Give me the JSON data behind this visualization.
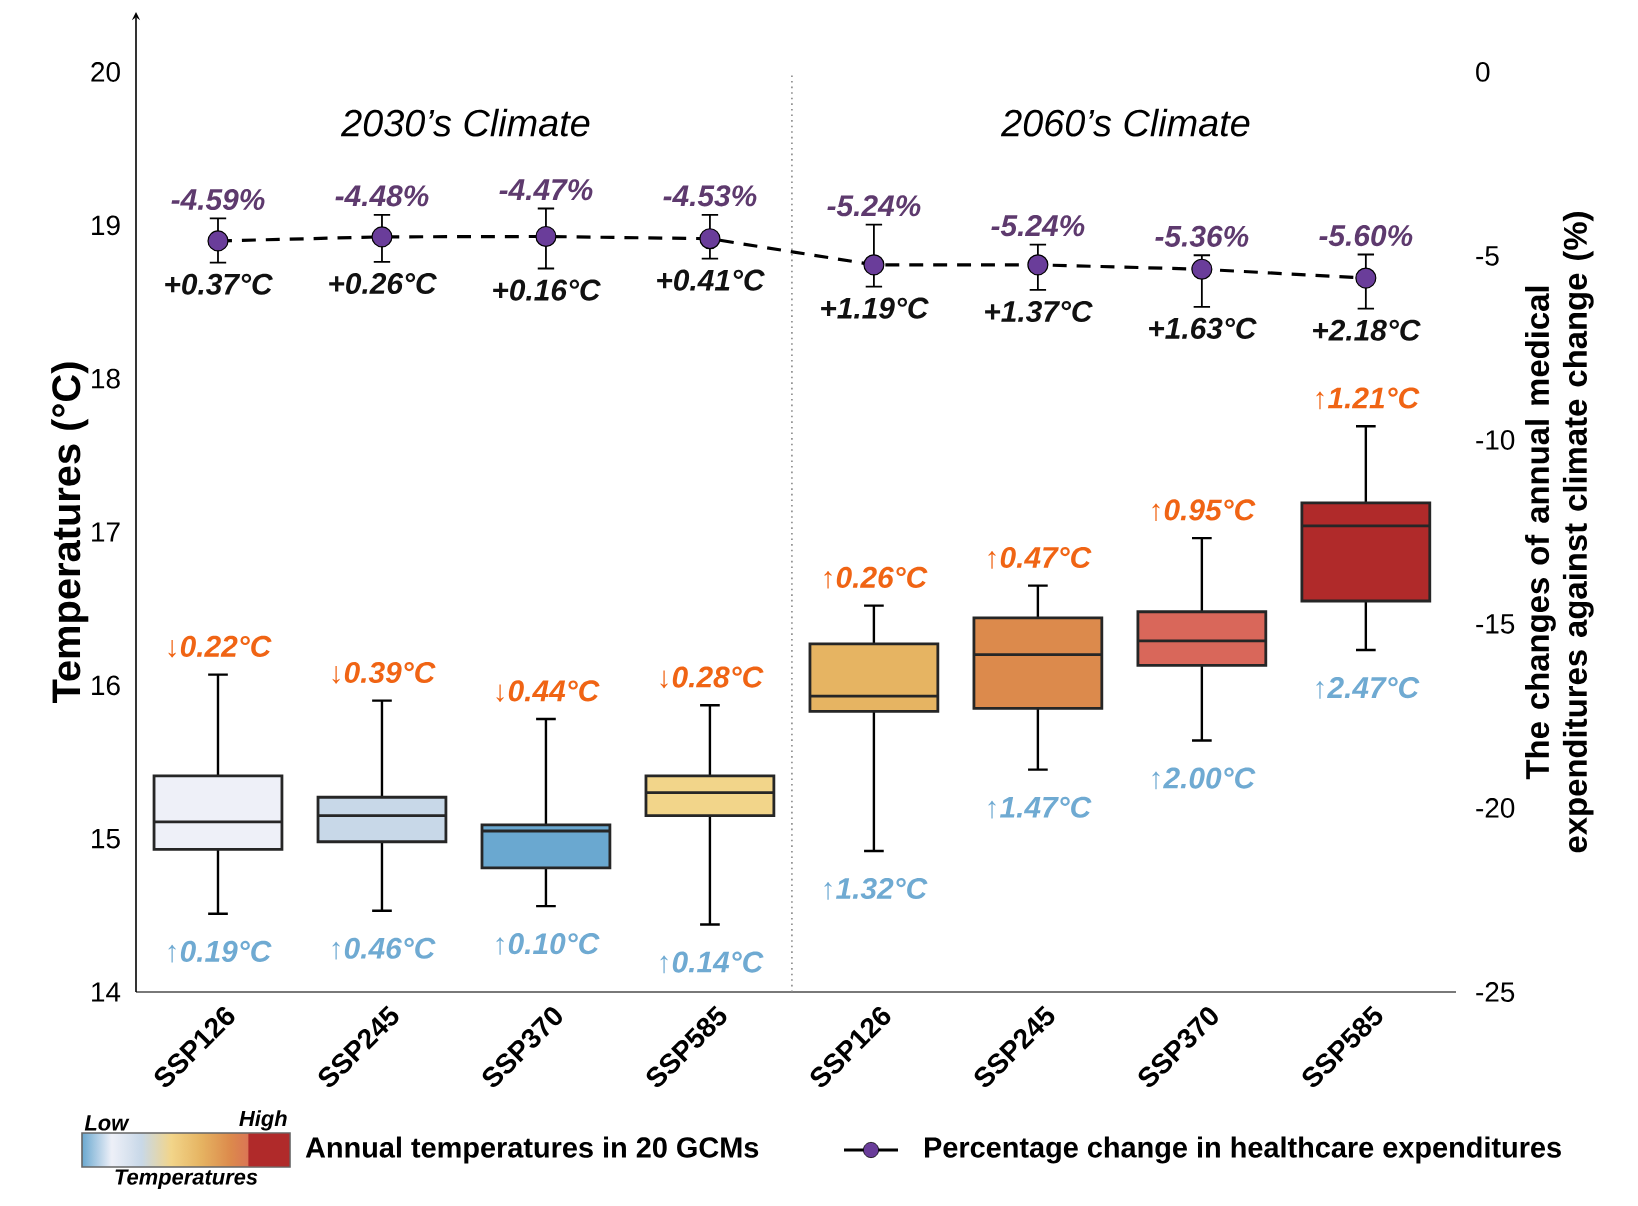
{
  "chart_data": {
    "type": "box",
    "categories": [
      "SSP126",
      "SSP245",
      "SSP370",
      "SSP585",
      "SSP126",
      "SSP245",
      "SSP370",
      "SSP585"
    ],
    "series": [
      {
        "name": "Annual temperatures in 20 GCMs",
        "colors": [
          "#eef0f8",
          "#c8d8e8",
          "#6aa8d0",
          "#f2d58a",
          "#e6b462",
          "#dc8a4c",
          "#d9675a",
          "#b02a2a"
        ],
        "boxes": [
          {
            "low": 14.51,
            "q1": 14.93,
            "median": 15.11,
            "q3": 15.41,
            "high": 16.07
          },
          {
            "low": 14.53,
            "q1": 14.98,
            "median": 15.15,
            "q3": 15.27,
            "high": 15.9
          },
          {
            "low": 14.56,
            "q1": 14.81,
            "median": 15.05,
            "q3": 15.09,
            "high": 15.78
          },
          {
            "low": 14.44,
            "q1": 15.15,
            "median": 15.3,
            "q3": 15.41,
            "high": 15.87
          },
          {
            "low": 14.92,
            "q1": 15.83,
            "median": 15.93,
            "q3": 16.27,
            "high": 16.52
          },
          {
            "low": 15.45,
            "q1": 15.85,
            "median": 16.2,
            "q3": 16.44,
            "high": 16.65
          },
          {
            "low": 15.64,
            "q1": 16.13,
            "median": 16.29,
            "q3": 16.48,
            "high": 16.96
          },
          {
            "low": 16.23,
            "q1": 16.55,
            "median": 17.04,
            "q3": 17.19,
            "high": 17.69
          }
        ]
      },
      {
        "name": "Percentage change in healthcare expenditures",
        "type": "line",
        "axis": "y2",
        "color": "#6a3d9a",
        "marker": "circle",
        "line_style": "dashed",
        "values": [
          -4.59,
          -4.48,
          -4.47,
          -4.53,
          -5.24,
          -5.24,
          -5.36,
          -5.6
        ],
        "errors": [
          [
            -5.18,
            -3.98
          ],
          [
            -5.16,
            -3.88
          ],
          [
            -5.34,
            -3.71
          ],
          [
            -5.07,
            -3.88
          ],
          [
            -5.83,
            -4.15
          ],
          [
            -5.92,
            -4.69
          ],
          [
            -6.38,
            -4.98
          ],
          [
            -6.43,
            -4.96
          ]
        ],
        "value_labels": [
          "-4.59%",
          "-4.48%",
          "-4.47%",
          "-4.53%",
          "-5.24%",
          "-5.24%",
          "-5.36%",
          "-5.60%"
        ]
      }
    ],
    "ylabel": "Temperatures (°C)",
    "y2label": "The changes of annual medical expenditures against climate change (%)",
    "ylim": [
      14,
      20
    ],
    "yticks": [
      14,
      15,
      16,
      17,
      18,
      19,
      20
    ],
    "y2lim": [
      -25,
      0
    ],
    "y2ticks": [
      -25,
      -20,
      -15,
      -10,
      -5,
      0
    ],
    "clabel": "Temperatures",
    "clim": [
      0,
      1
    ],
    "cticks": [
      {
        "value": 0,
        "label": "Low"
      },
      {
        "value": 1,
        "label": "High"
      }
    ],
    "legend": "bottom",
    "annotations": [
      "2030’s Climate",
      "2060’s Climate",
      "+0.37°C",
      "↓0.22°C",
      "↑0.19°C",
      "+0.26°C",
      "↓0.39°C",
      "↑0.46°C",
      "+0.16°C",
      "↓0.44°C",
      "↑0.10°C",
      "+0.41°C",
      "↓0.28°C",
      "↑0.14°C",
      "+1.19°C",
      "↑0.26°C",
      "↑1.32°C",
      "+1.37°C",
      "↑0.47°C",
      "↑1.47°C",
      "+1.63°C",
      "↑0.95°C",
      "↑2.00°C",
      "+2.18°C",
      "↑1.21°C",
      "↑2.47°C"
    ]
  }
}
